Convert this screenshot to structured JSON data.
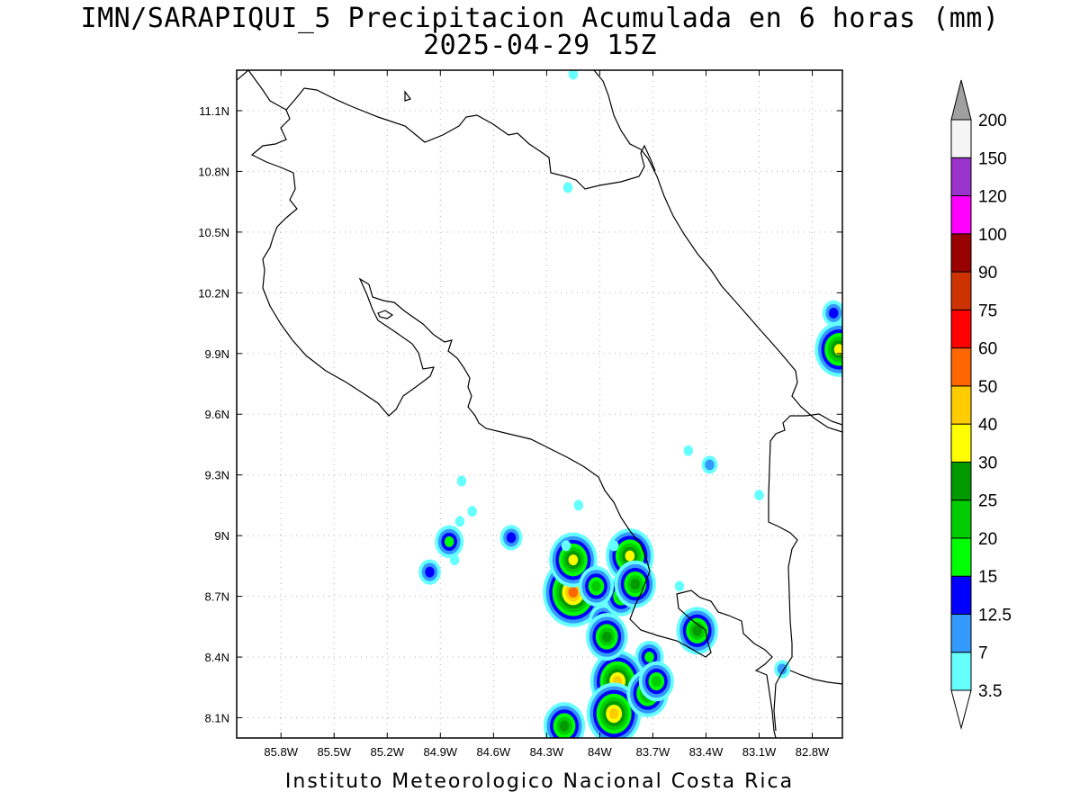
{
  "title": "IMN/SARAPIQUI_5 Precipitacion Acumulada en 6 horas (mm)",
  "subtitle": "2025-04-29 15Z",
  "footer": "Instituto Meteorologico Nacional Costa Rica",
  "map": {
    "lon_range": [
      -86.05,
      -82.63
    ],
    "lat_range": [
      8.0,
      11.3
    ],
    "lon_ticks": [
      "85.8W",
      "85.5W",
      "85.2W",
      "84.9W",
      "84.6W",
      "84.3W",
      "84W",
      "83.7W",
      "83.4W",
      "83.1W",
      "82.8W"
    ],
    "lat_ticks": [
      "11.1N",
      "10.8N",
      "10.5N",
      "10.2N",
      "9.9N",
      "9.6N",
      "9.3N",
      "9N",
      "8.7N",
      "8.4N",
      "8.1N"
    ],
    "grid": true
  },
  "colorbar": {
    "labels": [
      "3.5",
      "7",
      "12.5",
      "15",
      "20",
      "25",
      "30",
      "40",
      "50",
      "60",
      "75",
      "90",
      "100",
      "120",
      "150",
      "200"
    ],
    "colors": [
      "#66ffff",
      "#3399ff",
      "#0000ff",
      "#00ff00",
      "#00cc00",
      "#009900",
      "#ffff00",
      "#ffcc00",
      "#ff6600",
      "#ff0000",
      "#cc3300",
      "#990000",
      "#ff00ff",
      "#9933cc",
      "#f5f5f5",
      "#a0a0a0"
    ],
    "under_color": "#ffffff",
    "over_color": "#a0a0a0"
  },
  "precip_cells": [
    {
      "lon": -84.05,
      "lat": 8.78,
      "level": 3
    },
    {
      "lon": -83.9,
      "lat": 8.28,
      "level": 7
    },
    {
      "lon": -83.92,
      "lat": 8.12,
      "level": 7
    },
    {
      "lon": -84.15,
      "lat": 8.72,
      "level": 8
    },
    {
      "lon": -84.15,
      "lat": 8.88,
      "level": 6
    },
    {
      "lon": -83.83,
      "lat": 8.9,
      "level": 6
    },
    {
      "lon": -82.65,
      "lat": 9.92,
      "level": 6
    },
    {
      "lon": -84.2,
      "lat": 8.06,
      "level": 5
    },
    {
      "lon": -83.73,
      "lat": 8.22,
      "level": 5
    },
    {
      "lon": -84.85,
      "lat": 8.97,
      "level": 3
    },
    {
      "lon": -84.96,
      "lat": 8.82,
      "level": 2
    },
    {
      "lon": -84.5,
      "lat": 8.99,
      "level": 2
    },
    {
      "lon": -83.98,
      "lat": 8.58,
      "level": 3
    },
    {
      "lon": -83.96,
      "lat": 8.5,
      "level": 5
    },
    {
      "lon": -83.88,
      "lat": 8.7,
      "level": 4
    },
    {
      "lon": -83.8,
      "lat": 8.76,
      "level": 5
    },
    {
      "lon": -83.72,
      "lat": 8.4,
      "level": 3
    },
    {
      "lon": -83.45,
      "lat": 8.53,
      "level": 5
    },
    {
      "lon": -83.68,
      "lat": 8.28,
      "level": 4
    },
    {
      "lon": -82.97,
      "lat": 8.34,
      "level": 1
    },
    {
      "lon": -84.02,
      "lat": 8.75,
      "level": 4
    },
    {
      "lon": -84.12,
      "lat": 9.15,
      "level": 0
    },
    {
      "lon": -84.18,
      "lat": 10.72,
      "level": 0
    },
    {
      "lon": -84.78,
      "lat": 9.27,
      "level": 0
    },
    {
      "lon": -84.72,
      "lat": 9.12,
      "level": 0
    },
    {
      "lon": -84.79,
      "lat": 9.07,
      "level": 0
    },
    {
      "lon": -84.82,
      "lat": 8.88,
      "level": 0
    },
    {
      "lon": -83.92,
      "lat": 8.95,
      "level": 0
    },
    {
      "lon": -84.19,
      "lat": 8.95,
      "level": 0
    },
    {
      "lon": -83.38,
      "lat": 9.35,
      "level": 1
    },
    {
      "lon": -83.5,
      "lat": 9.42,
      "level": 0
    },
    {
      "lon": -83.1,
      "lat": 9.2,
      "level": 0
    },
    {
      "lon": -82.68,
      "lat": 10.1,
      "level": 2
    },
    {
      "lon": -84.15,
      "lat": 11.28,
      "level": 0
    },
    {
      "lon": -83.55,
      "lat": 8.75,
      "level": 0
    }
  ]
}
